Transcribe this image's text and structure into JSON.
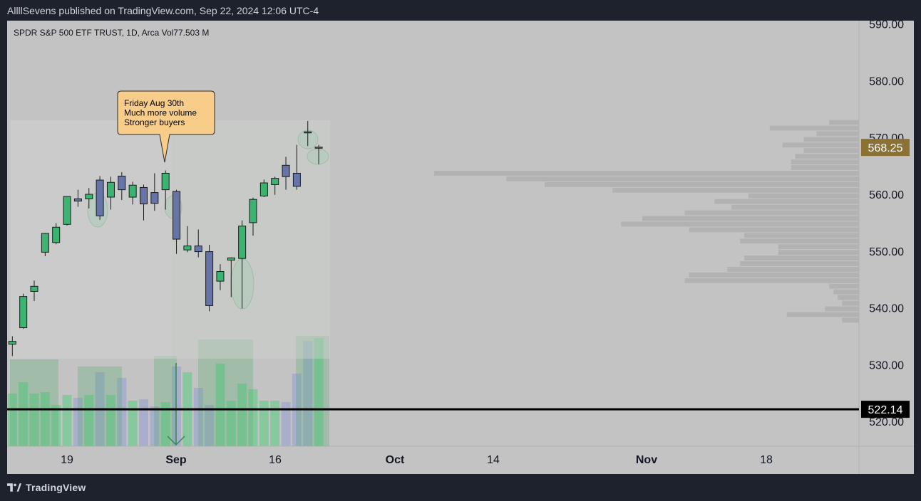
{
  "header": {
    "published": "AllllSevens published on TradingView.com, Sep 22, 2024 12:06 UTC-4"
  },
  "footer": {
    "brand": "TradingView"
  },
  "colors": {
    "background": "#c3c3c3",
    "frame": "#1e222d",
    "up_candle": "#3cb371",
    "down_candle": "#6674a8",
    "volume_up": "#7dc998",
    "volume_down": "#a3aace",
    "volume_profile": "#b2b2b2",
    "price_badge": "#8b7234",
    "support_line": "#000000",
    "callout_fill": "#f8cd8a"
  },
  "chart_data": {
    "type": "candlestick",
    "legend": "SPDR S&P 500 ETF TRUST, 1D, Arca  Vol77.503 M",
    "y_axis": {
      "ticks": [
        "590.00",
        "580.00",
        "570.00",
        "560.00",
        "550.00",
        "540.00",
        "530.00",
        "520.00"
      ],
      "tick_values": [
        590,
        580,
        570,
        560,
        550,
        540,
        530,
        520
      ],
      "range": [
        518.7,
        590.5
      ]
    },
    "x_axis": {
      "labels": [
        "19",
        "Sep",
        "16",
        "Oct",
        "14",
        "Nov",
        "18"
      ]
    },
    "last_price": {
      "value": 568.25,
      "label": "568.25"
    },
    "support_line": {
      "value": 522.14,
      "label": "522.14"
    },
    "annotation": {
      "lines": [
        "Friday Aug 30th",
        "Much more volume",
        "Stronger buyers"
      ]
    },
    "candles": [
      {
        "date": "Aug 12",
        "o": 533.6,
        "h": 535.0,
        "l": 531.5,
        "c": 534.1
      },
      {
        "date": "Aug 13",
        "o": 536.5,
        "h": 542.5,
        "l": 536.3,
        "c": 542.0
      },
      {
        "date": "Aug 14",
        "o": 542.9,
        "h": 544.8,
        "l": 541.2,
        "c": 543.8
      },
      {
        "date": "Aug 15",
        "o": 549.8,
        "h": 553.2,
        "l": 549.1,
        "c": 553.1
      },
      {
        "date": "Aug 16",
        "o": 551.5,
        "h": 554.9,
        "l": 551.2,
        "c": 554.2
      },
      {
        "date": "Aug 19",
        "o": 554.7,
        "h": 559.6,
        "l": 554.5,
        "c": 559.6
      },
      {
        "date": "Aug 20",
        "o": 559.2,
        "h": 560.8,
        "l": 557.8,
        "c": 558.8
      },
      {
        "date": "Aug 21",
        "o": 559.2,
        "h": 561.1,
        "l": 557.5,
        "c": 560.0
      },
      {
        "date": "Aug 22",
        "o": 562.5,
        "h": 563.2,
        "l": 555.5,
        "c": 556.2
      },
      {
        "date": "Aug 23",
        "o": 559.5,
        "h": 563.1,
        "l": 557.3,
        "c": 562.1
      },
      {
        "date": "Aug 26",
        "o": 563.2,
        "h": 563.9,
        "l": 559.0,
        "c": 560.8
      },
      {
        "date": "Aug 27",
        "o": 559.5,
        "h": 562.2,
        "l": 558.2,
        "c": 561.6
      },
      {
        "date": "Aug 28",
        "o": 561.2,
        "h": 561.7,
        "l": 555.4,
        "c": 558.3
      },
      {
        "date": "Aug 29",
        "o": 560.3,
        "h": 563.7,
        "l": 557.1,
        "c": 558.4
      },
      {
        "date": "Aug 30",
        "o": 560.8,
        "h": 564.2,
        "l": 557.3,
        "c": 563.7
      },
      {
        "date": "Sep 3",
        "o": 560.5,
        "h": 560.8,
        "l": 549.5,
        "c": 552.1
      },
      {
        "date": "Sep 4",
        "o": 550.2,
        "h": 554.4,
        "l": 549.8,
        "c": 550.9
      },
      {
        "date": "Sep 5",
        "o": 550.9,
        "h": 553.8,
        "l": 548.9,
        "c": 549.9
      },
      {
        "date": "Sep 6",
        "o": 549.9,
        "h": 551.1,
        "l": 539.4,
        "c": 540.4
      },
      {
        "date": "Sep 9",
        "o": 544.7,
        "h": 547.7,
        "l": 543.1,
        "c": 546.4
      },
      {
        "date": "Sep 10",
        "o": 548.4,
        "h": 548.9,
        "l": 541.9,
        "c": 548.8
      },
      {
        "date": "Sep 11",
        "o": 548.7,
        "h": 555.4,
        "l": 539.9,
        "c": 554.4
      },
      {
        "date": "Sep 12",
        "o": 555.0,
        "h": 559.4,
        "l": 552.7,
        "c": 559.1
      },
      {
        "date": "Sep 13",
        "o": 559.7,
        "h": 562.6,
        "l": 559.5,
        "c": 562.0
      },
      {
        "date": "Sep 16",
        "o": 561.7,
        "h": 563.1,
        "l": 559.9,
        "c": 562.8
      },
      {
        "date": "Sep 17",
        "o": 565.1,
        "h": 566.6,
        "l": 560.8,
        "c": 563.1
      },
      {
        "date": "Sep 18",
        "o": 563.7,
        "h": 568.7,
        "l": 560.8,
        "c": 561.4
      },
      {
        "date": "Sep 19",
        "o": 571.0,
        "h": 572.9,
        "l": 568.5,
        "c": 570.9
      },
      {
        "date": "Sep 20",
        "o": 568.3,
        "h": 568.7,
        "l": 565.3,
        "c": 568.3
      }
    ],
    "volume_relative": [
      0.37,
      0.45,
      0.37,
      0.38,
      0.29,
      0.36,
      0.34,
      0.36,
      0.52,
      0.36,
      0.48,
      0.32,
      0.33,
      0.28,
      0.31,
      0.56,
      0.52,
      0.41,
      0.29,
      0.58,
      0.32,
      0.44,
      0.4,
      0.32,
      0.32,
      0.31,
      0.51,
      0.74,
      0.76
    ],
    "volume_profile_relative": [
      0.07,
      0.21,
      0.1,
      0.13,
      0.18,
      0.13,
      0.15,
      0.16,
      0.16,
      1.0,
      0.83,
      0.74,
      0.58,
      0.26,
      0.34,
      0.3,
      0.41,
      0.51,
      0.56,
      0.4,
      0.27,
      0.28,
      0.19,
      0.19,
      0.27,
      0.28,
      0.31,
      0.4,
      0.41,
      0.07,
      0.06,
      0.05,
      0.04,
      0.08,
      0.17,
      0.04
    ]
  }
}
